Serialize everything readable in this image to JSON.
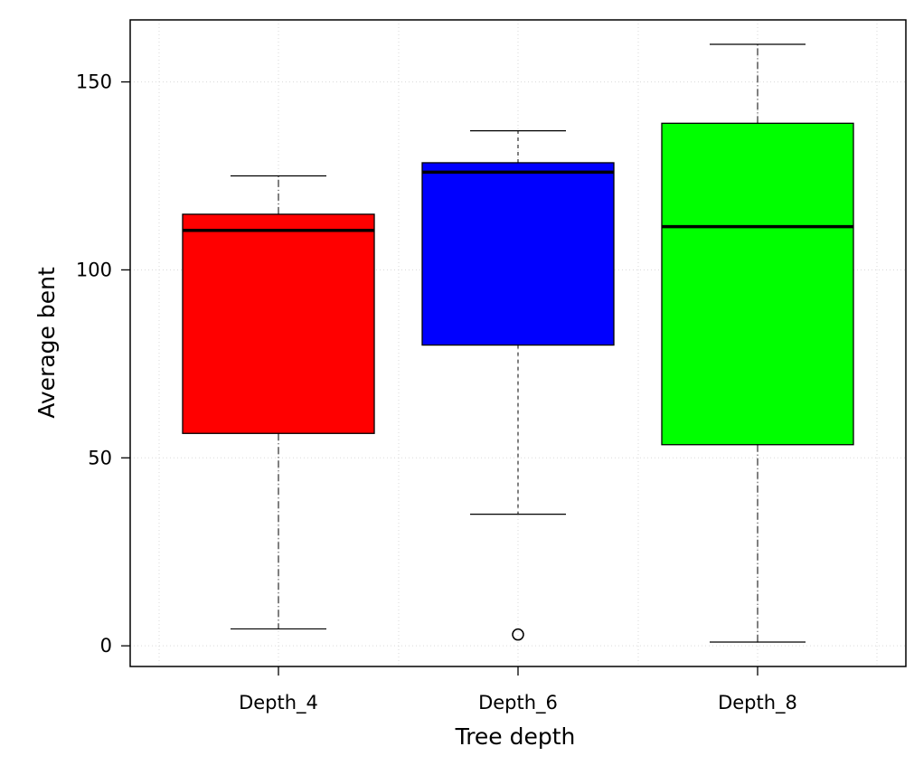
{
  "chart_data": {
    "type": "box",
    "title": "",
    "xlabel": "Tree depth",
    "ylabel": "Average bent",
    "ylim": [
      -5.5,
      166.5
    ],
    "yticks": [
      0,
      50,
      100,
      150
    ],
    "grid": true,
    "categories": [
      "Depth_4",
      "Depth_6",
      "Depth_8"
    ],
    "series": [
      {
        "name": "Depth_4",
        "color": "#ff0000",
        "whisker_low": 4.5,
        "q1": 56.5,
        "median": 110.5,
        "q3": 114.8,
        "whisker_high": 125.0,
        "outliers": []
      },
      {
        "name": "Depth_6",
        "color": "#0000ff",
        "whisker_low": 35.0,
        "q1": 80.0,
        "median": 126.0,
        "q3": 128.5,
        "whisker_high": 137.0,
        "outliers": [
          3.0
        ]
      },
      {
        "name": "Depth_8",
        "color": "#00ff00",
        "whisker_low": 1.0,
        "q1": 53.5,
        "median": 111.5,
        "q3": 139.0,
        "whisker_high": 160.0,
        "outliers": []
      }
    ]
  }
}
